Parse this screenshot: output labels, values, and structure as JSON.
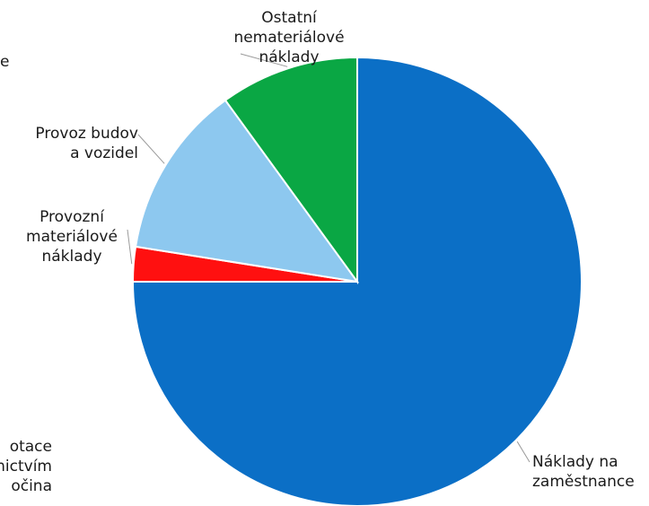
{
  "chart_data": {
    "type": "pie",
    "start_angle_deg": 0,
    "direction": "clockwise",
    "slices": [
      {
        "label_lines": [
          "Náklady na",
          "zaměstnance"
        ],
        "value": 75.0,
        "color": "#0b6fc6"
      },
      {
        "label_lines": [
          "Provozní",
          "materiálové",
          "náklady"
        ],
        "value": 2.5,
        "color": "#ff1010"
      },
      {
        "label_lines": [
          "Provoz budov",
          "a vozidel"
        ],
        "value": 12.5,
        "color": "#8dc8ef"
      },
      {
        "label_lines": [
          "Ostatní",
          "nemateriálové",
          "náklady"
        ],
        "value": 10.0,
        "color": "#0aa744"
      }
    ],
    "partial_text_left": [
      "otace",
      "nictvím",
      "očina"
    ],
    "partial_text_top_left": "e"
  }
}
